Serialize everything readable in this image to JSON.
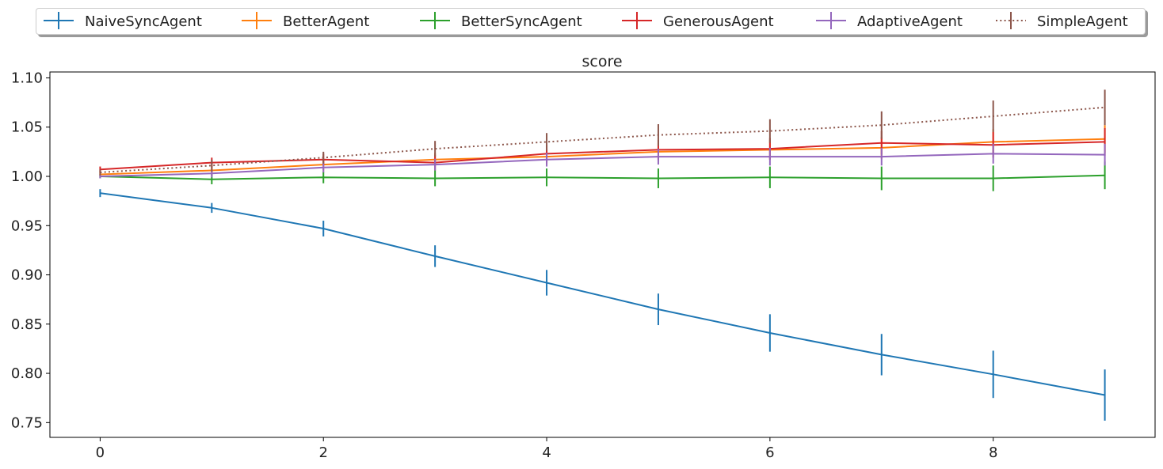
{
  "chart_data": {
    "type": "line",
    "title": "score",
    "xlabel": "",
    "ylabel": "",
    "xlim": [
      -0.45,
      9.45
    ],
    "ylim": [
      0.735,
      1.106
    ],
    "xticks": [
      0,
      2,
      4,
      6,
      8
    ],
    "yticks": [
      0.75,
      0.8,
      0.85,
      0.9,
      0.95,
      1.0,
      1.05,
      1.1
    ],
    "grid": false,
    "legend_position": "top",
    "x": [
      0,
      1,
      2,
      3,
      4,
      5,
      6,
      7,
      8,
      9
    ],
    "series": [
      {
        "name": "NaiveSyncAgent",
        "color": "#1f77b4",
        "style": "solid",
        "values": [
          0.983,
          0.968,
          0.947,
          0.919,
          0.892,
          0.865,
          0.841,
          0.819,
          0.799,
          0.778
        ],
        "errors": [
          0.004,
          0.005,
          0.008,
          0.011,
          0.013,
          0.016,
          0.019,
          0.021,
          0.024,
          0.026
        ]
      },
      {
        "name": "BetterAgent",
        "color": "#ff7f0e",
        "style": "solid",
        "values": [
          1.002,
          1.006,
          1.012,
          1.017,
          1.02,
          1.025,
          1.027,
          1.029,
          1.035,
          1.038
        ],
        "errors": [
          0.003,
          0.005,
          0.006,
          0.007,
          0.008,
          0.009,
          0.01,
          0.011,
          0.013,
          0.014
        ]
      },
      {
        "name": "BetterSyncAgent",
        "color": "#2ca02c",
        "style": "solid",
        "values": [
          1.0,
          0.997,
          0.999,
          0.998,
          0.999,
          0.998,
          0.999,
          0.998,
          0.998,
          1.001
        ],
        "errors": [
          0.002,
          0.005,
          0.006,
          0.008,
          0.009,
          0.01,
          0.011,
          0.012,
          0.013,
          0.014
        ]
      },
      {
        "name": "GenerousAgent",
        "color": "#d62728",
        "style": "solid",
        "values": [
          1.007,
          1.014,
          1.017,
          1.014,
          1.023,
          1.027,
          1.028,
          1.034,
          1.032,
          1.035
        ],
        "errors": [
          0.003,
          0.005,
          0.006,
          0.008,
          0.009,
          0.01,
          0.011,
          0.012,
          0.013,
          0.014
        ]
      },
      {
        "name": "AdaptiveAgent",
        "color": "#9467bd",
        "style": "solid",
        "values": [
          1.0,
          1.003,
          1.009,
          1.012,
          1.017,
          1.02,
          1.02,
          1.02,
          1.023,
          1.022
        ],
        "errors": [
          0.002,
          0.004,
          0.005,
          0.006,
          0.007,
          0.008,
          0.009,
          0.009,
          0.01,
          0.011
        ]
      },
      {
        "name": "SimpleAgent",
        "color": "#8c564b",
        "style": "dotted",
        "values": [
          1.004,
          1.011,
          1.019,
          1.028,
          1.035,
          1.042,
          1.046,
          1.052,
          1.061,
          1.07
        ],
        "errors": [
          0.003,
          0.006,
          0.006,
          0.008,
          0.009,
          0.011,
          0.012,
          0.014,
          0.016,
          0.018
        ]
      }
    ]
  }
}
